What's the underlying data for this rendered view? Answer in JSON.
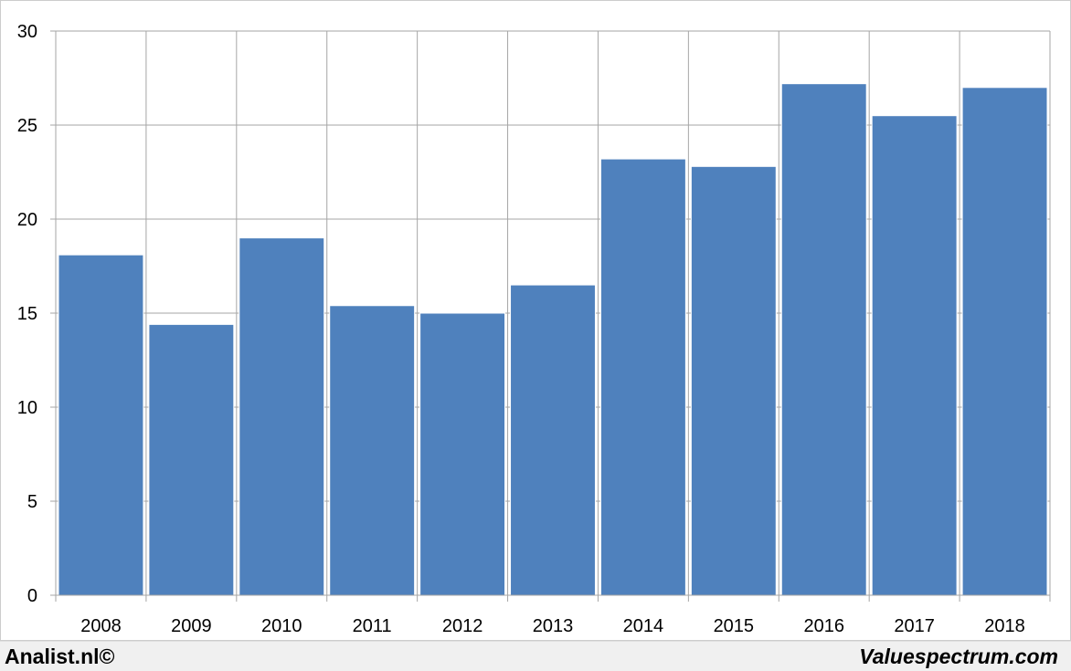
{
  "chart_data": {
    "type": "bar",
    "categories": [
      "2008",
      "2009",
      "2010",
      "2011",
      "2012",
      "2013",
      "2014",
      "2015",
      "2016",
      "2017",
      "2018"
    ],
    "values": [
      18.1,
      14.4,
      19.0,
      15.4,
      15.0,
      16.5,
      23.2,
      22.8,
      27.2,
      25.5,
      27.0
    ],
    "yticks": [
      "0",
      "5",
      "10",
      "15",
      "20",
      "25",
      "30"
    ],
    "ylim": [
      0,
      30
    ],
    "grid": true,
    "bar_color": "#4f81bd",
    "grid_color": "#a6a6a6"
  },
  "footer": {
    "left": "Analist.nl©",
    "right": "Valuespectrum.com"
  }
}
